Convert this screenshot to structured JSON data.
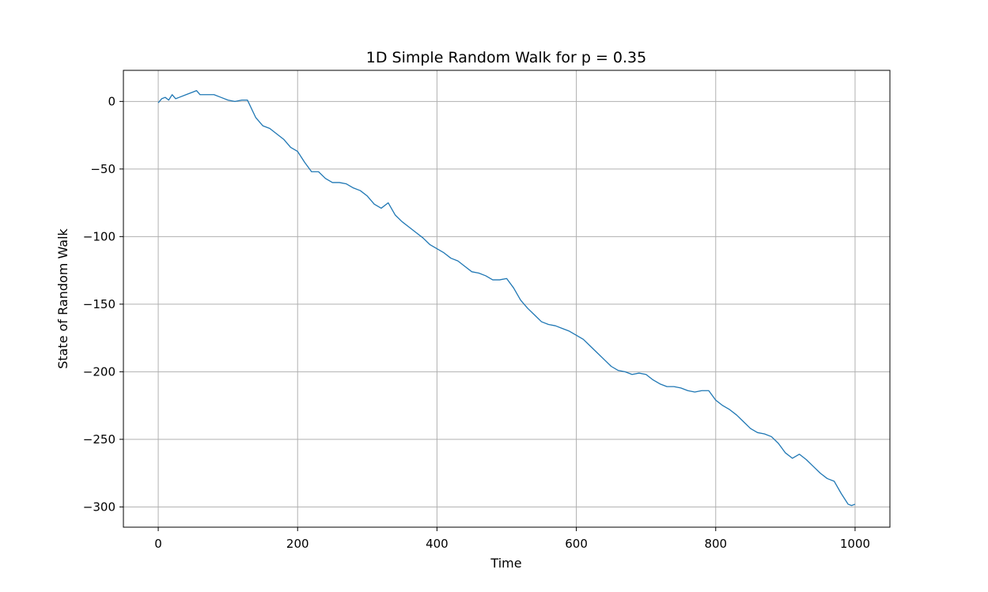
{
  "chart_data": {
    "type": "line",
    "title": "1D Simple Random Walk for p = 0.35",
    "xlabel": "Time",
    "ylabel": "State of Random Walk",
    "xlim": [
      -50,
      1050
    ],
    "ylim": [
      -315,
      23
    ],
    "xticks": [
      0,
      200,
      400,
      600,
      800,
      1000
    ],
    "yticks": [
      0,
      -50,
      -100,
      -150,
      -200,
      -250,
      -300
    ],
    "xtick_labels": [
      "0",
      "200",
      "400",
      "600",
      "800",
      "1000"
    ],
    "ytick_labels": [
      "0",
      "−50",
      "−100",
      "−150",
      "−200",
      "−250",
      "−300"
    ],
    "grid": true,
    "line_color": "#1f77b4",
    "grid_color": "#b0b0b0",
    "series": [
      {
        "x": [
          0,
          5,
          10,
          15,
          20,
          25,
          30,
          40,
          50,
          55,
          60,
          70,
          80,
          90,
          100,
          110,
          120,
          128,
          140,
          150,
          160,
          170,
          180,
          190,
          200,
          210,
          220,
          230,
          240,
          250,
          260,
          270,
          280,
          290,
          300,
          310,
          320,
          330,
          340,
          350,
          360,
          370,
          380,
          390,
          400,
          410,
          420,
          430,
          440,
          450,
          460,
          470,
          480,
          490,
          500,
          510,
          520,
          530,
          540,
          550,
          560,
          570,
          580,
          590,
          600,
          610,
          620,
          630,
          640,
          650,
          660,
          670,
          680,
          690,
          700,
          710,
          720,
          730,
          740,
          750,
          760,
          770,
          780,
          790,
          800,
          810,
          820,
          830,
          840,
          850,
          860,
          870,
          880,
          890,
          900,
          910,
          920,
          930,
          940,
          950,
          960,
          970,
          980,
          990,
          995,
          1000
        ],
        "y": [
          -1,
          2,
          3,
          1,
          5,
          2,
          3,
          5,
          7,
          8,
          5,
          5,
          5,
          3,
          1,
          0,
          1,
          1,
          -12,
          -18,
          -20,
          -24,
          -28,
          -34,
          -37,
          -45,
          -52,
          -52,
          -57,
          -60,
          -60,
          -61,
          -64,
          -66,
          -70,
          -76,
          -79,
          -75,
          -84,
          -89,
          -93,
          -97,
          -101,
          -106,
          -109,
          -112,
          -116,
          -118,
          -122,
          -126,
          -127,
          -129,
          -132,
          -132,
          -131,
          -138,
          -147,
          -153,
          -158,
          -163,
          -165,
          -166,
          -168,
          -170,
          -173,
          -176,
          -181,
          -186,
          -191,
          -196,
          -199,
          -200,
          -202,
          -201,
          -202,
          -206,
          -209,
          -211,
          -211,
          -212,
          -214,
          -215,
          -214,
          -214,
          -221,
          -225,
          -228,
          -232,
          -237,
          -242,
          -245,
          -246,
          -248,
          -253,
          -260,
          -264,
          -261,
          -265,
          -270,
          -275,
          -279,
          -281,
          -290,
          -298,
          -299,
          -298
        ]
      }
    ]
  }
}
